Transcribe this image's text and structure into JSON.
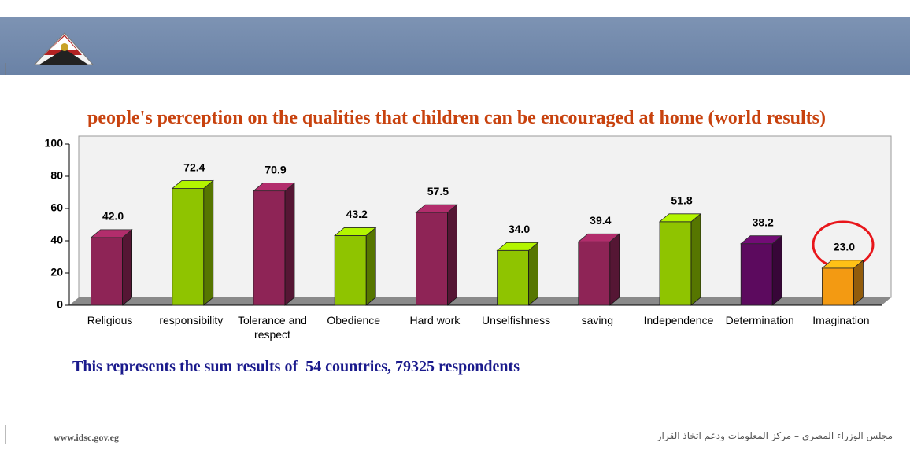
{
  "header": {
    "site": "www.idsc.gov.eg",
    "organization": "مجلس الوزراء المصري – مركز المعلومات ودعم اتخاذ القرار"
  },
  "chart_data": {
    "type": "bar",
    "title": "people's perception on the qualities that children can be encouraged at home (world results)",
    "note": "This represents the sum results of  54 countries, 79325 respondents",
    "categories": [
      "Religious",
      "responsibility",
      "Tolerance and respect",
      "Obedience",
      "Hard work",
      "Unselfishness",
      "saving",
      "Independence",
      "Determination",
      "Imagination"
    ],
    "values": [
      42.0,
      72.4,
      70.9,
      43.2,
      57.5,
      34.0,
      39.4,
      51.8,
      38.2,
      23.0
    ],
    "value_labels": [
      "42.0",
      "72.4",
      "70.9",
      "43.2",
      "57.5",
      "34.0",
      "39.4",
      "51.8",
      "38.2",
      "23.0"
    ],
    "colors": [
      "#8e2456",
      "#8fc400",
      "#8e2456",
      "#8fc400",
      "#8e2456",
      "#8fc400",
      "#8e2456",
      "#8fc400",
      "#5c0a5e",
      "#f39a12"
    ],
    "ylim": [
      0,
      100
    ],
    "yticks": [
      0,
      20,
      40,
      60,
      80,
      100
    ],
    "grid": false
  }
}
